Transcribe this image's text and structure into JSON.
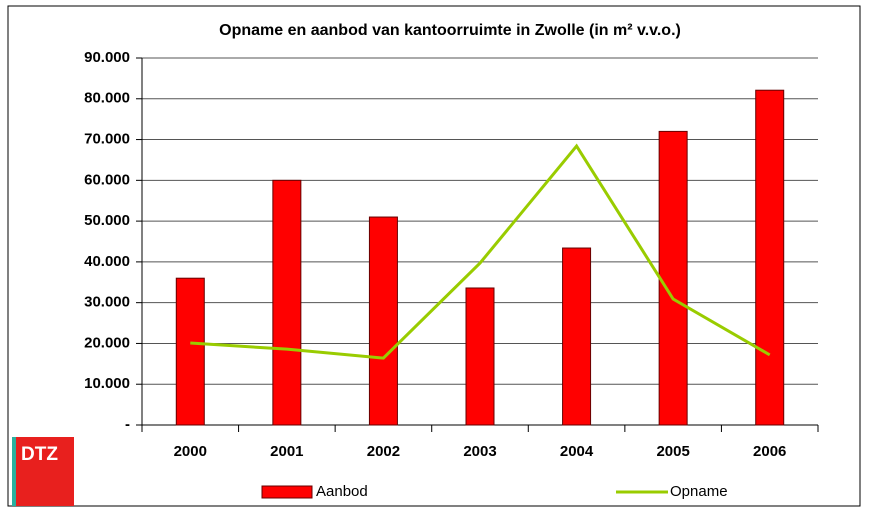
{
  "logo": "DTZ",
  "chart_data": {
    "type": "bar",
    "title": "Opname en aanbod van kantoorruimte in Zwolle (in m² v.v.o.)",
    "categories": [
      "2000",
      "2001",
      "2002",
      "2003",
      "2004",
      "2005",
      "2006"
    ],
    "series": [
      {
        "name": "Aanbod",
        "type": "bar",
        "color": "#ff0000",
        "values": [
          36000,
          60000,
          51000,
          33600,
          43400,
          72000,
          82100
        ]
      },
      {
        "name": "Opname",
        "type": "line",
        "color": "#99cc00",
        "values": [
          20100,
          18600,
          16400,
          39700,
          68400,
          30900,
          17200
        ]
      }
    ],
    "ylim": [
      0,
      90000
    ],
    "yticks": [
      {
        "value": 0,
        "label": "-"
      },
      {
        "value": 10000,
        "label": "10.000"
      },
      {
        "value": 20000,
        "label": "20.000"
      },
      {
        "value": 30000,
        "label": "30.000"
      },
      {
        "value": 40000,
        "label": "40.000"
      },
      {
        "value": 50000,
        "label": "50.000"
      },
      {
        "value": 60000,
        "label": "60.000"
      },
      {
        "value": 70000,
        "label": "70.000"
      },
      {
        "value": 80000,
        "label": "80.000"
      },
      {
        "value": 90000,
        "label": "90.000"
      }
    ],
    "grid": true,
    "legend": "bottom"
  }
}
